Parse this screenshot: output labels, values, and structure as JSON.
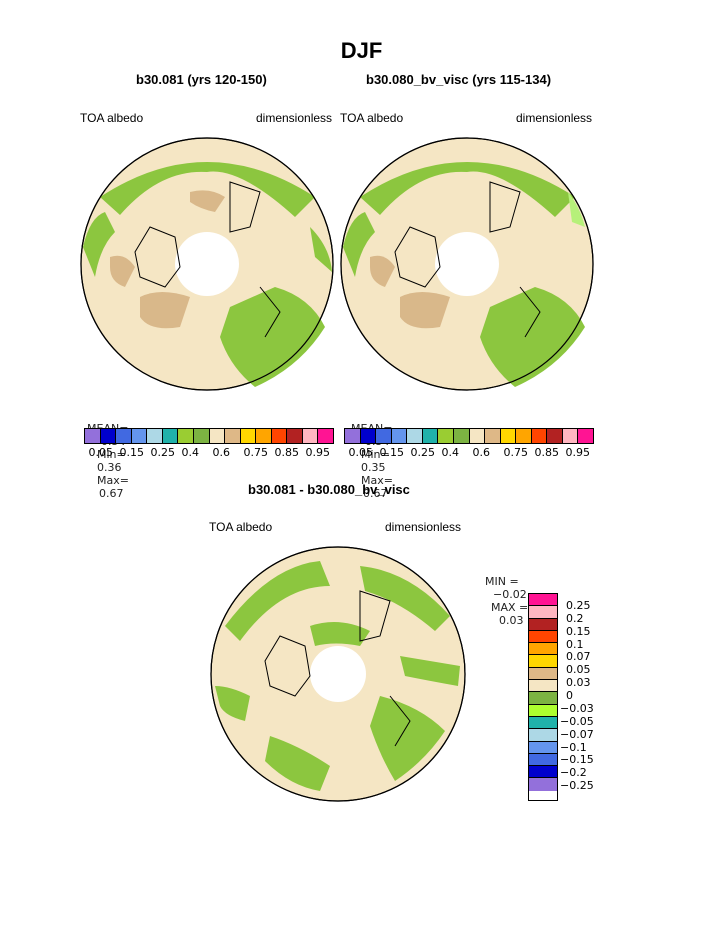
{
  "title": "DJF",
  "left_panel": {
    "subtitle": "b30.081 (yrs 120-150)",
    "left_label": "TOA albedo",
    "right_label": "dimensionless",
    "mean_label": "MEAN=",
    "mean": "0.54",
    "min_label": "Min=",
    "min": "0.36",
    "max_label": "Max=",
    "max": "0.67"
  },
  "right_panel": {
    "subtitle": "b30.080_bv_visc (yrs 115-134)",
    "left_label": "TOA albedo",
    "right_label": "dimensionless",
    "mean_label": "MEAN=",
    "mean": "0.54",
    "min_label": "Min=",
    "min": "0.35",
    "max_label": "Max=",
    "max": "0.67"
  },
  "diff_panel": {
    "subtitle": "b30.081 - b30.080_bv_visc",
    "left_label": "TOA albedo",
    "right_label": "dimensionless",
    "min_label": "MIN =",
    "min": "−0.02",
    "max_label": "MAX =",
    "max": "0.03"
  },
  "colorbar_top": {
    "colors": [
      "#9370db",
      "#0000cd",
      "#4169e1",
      "#6495ed",
      "#add8e6",
      "#20b2aa",
      "#9acd32",
      "#7cb342",
      "#f5e6c4",
      "#deb887",
      "#ffd700",
      "#ffa500",
      "#ff4500",
      "#b22222",
      "#ffb6c1",
      "#ff1493"
    ],
    "ticks": [
      "0.05",
      "0.15",
      "0.25",
      "0.4",
      "0.6",
      "0.75",
      "0.85",
      "0.95"
    ]
  },
  "colorbar_diff": {
    "colors": [
      "#ff1493",
      "#ffb6c1",
      "#b22222",
      "#ff4500",
      "#ffa500",
      "#ffd700",
      "#deb887",
      "#f5e6c4",
      "#7cb342",
      "#adff2f",
      "#20b2aa",
      "#add8e6",
      "#6495ed",
      "#4169e1",
      "#0000cd",
      "#9370db"
    ],
    "ticks": [
      "0.25",
      "0.2",
      "0.15",
      "0.1",
      "0.07",
      "0.05",
      "0.03",
      "0",
      "−0.03",
      "−0.05",
      "−0.07",
      "−0.1",
      "−0.15",
      "−0.2",
      "−0.25"
    ]
  },
  "map_colors": {
    "land_tan": "#f5e6c4",
    "green": "#8cc63f",
    "brown": "#d9b88a",
    "light_green": "#b6f07a"
  }
}
